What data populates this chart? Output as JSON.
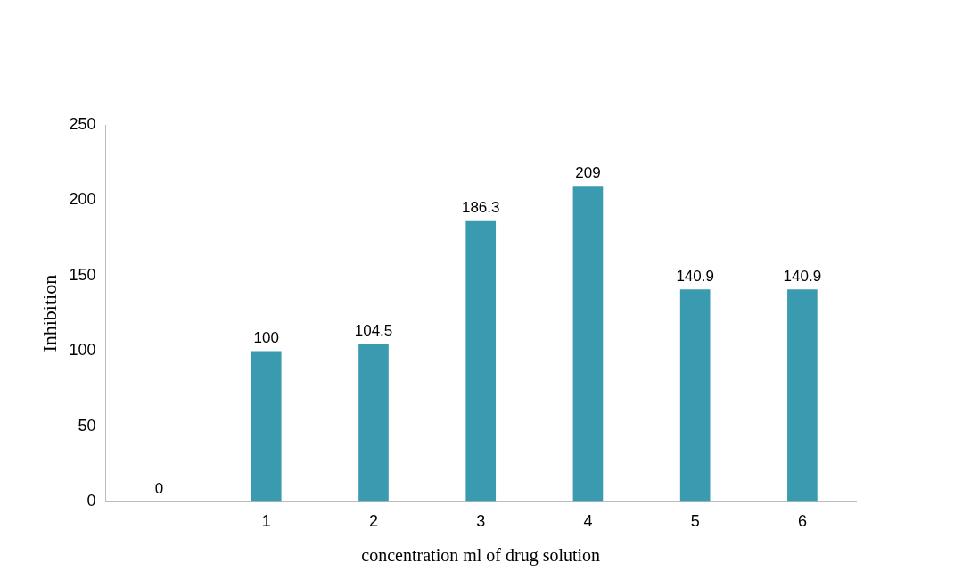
{
  "chart_data": {
    "type": "bar",
    "xlabel": "concentration ml of drug solution",
    "ylabel": "Inhibition",
    "categories": [
      null,
      "1",
      "2",
      "3",
      "4",
      "5",
      "6"
    ],
    "values": [
      0,
      100,
      104.5,
      186.3,
      209,
      140.9,
      140.9
    ],
    "color": "#3a9bb0",
    "ylim": [
      0,
      250
    ],
    "yticks": [
      0,
      50,
      100,
      150,
      200,
      250
    ],
    "grid": false,
    "legend": false,
    "data_labels": true
  }
}
